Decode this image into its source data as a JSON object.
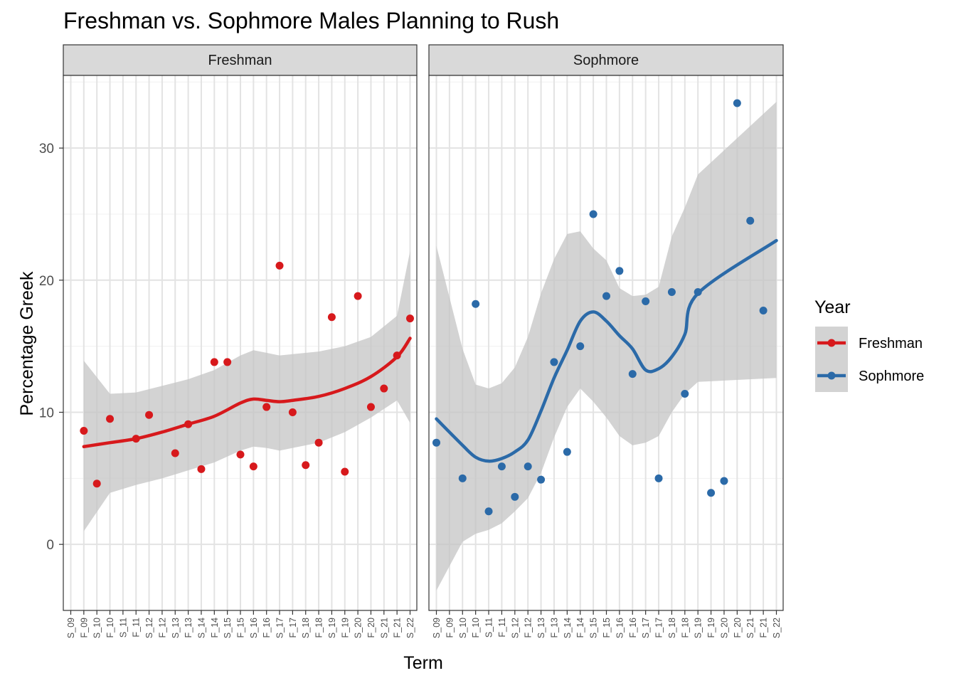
{
  "chart_data": {
    "type": "scatter",
    "title": "Freshman vs. Sophmore Males Planning to Rush",
    "xlabel": "Term",
    "ylabel": "Percentage Greek",
    "ylim": [
      -5,
      35.5
    ],
    "yticks": [
      0,
      10,
      20,
      30
    ],
    "grid": true,
    "legend": {
      "title": "Year",
      "position": "right"
    },
    "colors": {
      "Freshman": "#d7191c",
      "Sophmore": "#2b6aa8",
      "ribbon": "#c4c4c4"
    },
    "panels": [
      {
        "strip": "Freshman",
        "x_categories": [
          "S_09",
          "F_09",
          "S_10",
          "F_10",
          "S_11",
          "F_11",
          "S_12",
          "F_12",
          "S_13",
          "F_13",
          "S_14",
          "F_14",
          "S_15",
          "F_15",
          "S_16",
          "F_16",
          "S_17",
          "F_17",
          "S_18",
          "F_18",
          "S_19",
          "F_19",
          "S_20",
          "F_20",
          "S_21",
          "F_21",
          "S_22"
        ],
        "series": [
          {
            "name": "Freshman",
            "points": [
              [
                "F_09",
                8.6
              ],
              [
                "S_10",
                4.6
              ],
              [
                "F_10",
                9.5
              ],
              [
                "F_11",
                8.0
              ],
              [
                "S_12",
                9.8
              ],
              [
                "S_13",
                6.9
              ],
              [
                "F_13",
                9.1
              ],
              [
                "S_14",
                5.7
              ],
              [
                "F_14",
                13.8
              ],
              [
                "S_15",
                13.8
              ],
              [
                "F_15",
                6.8
              ],
              [
                "S_16",
                5.9
              ],
              [
                "F_16",
                10.4
              ],
              [
                "S_17",
                21.1
              ],
              [
                "F_17",
                10.0
              ],
              [
                "S_18",
                6.0
              ],
              [
                "F_18",
                7.7
              ],
              [
                "S_19",
                17.2
              ],
              [
                "F_19",
                5.5
              ],
              [
                "S_20",
                18.8
              ],
              [
                "F_20",
                10.4
              ],
              [
                "S_21",
                11.8
              ],
              [
                "F_21",
                14.3
              ],
              [
                "S_22",
                17.1
              ]
            ],
            "smooth": [
              [
                "F_09",
                7.4
              ],
              [
                "F_10",
                7.7
              ],
              [
                "F_11",
                8.0
              ],
              [
                "F_12",
                8.5
              ],
              [
                "F_13",
                9.1
              ],
              [
                "F_14",
                9.7
              ],
              [
                "F_15",
                10.7
              ],
              [
                "S_16",
                11.0
              ],
              [
                "F_16",
                10.9
              ],
              [
                "S_17",
                10.8
              ],
              [
                "F_17",
                10.9
              ],
              [
                "F_18",
                11.2
              ],
              [
                "F_19",
                11.8
              ],
              [
                "F_20",
                12.7
              ],
              [
                "F_21",
                14.2
              ],
              [
                "S_22",
                15.6
              ]
            ],
            "ribbon_upper": [
              [
                "F_09",
                13.9
              ],
              [
                "F_10",
                11.4
              ],
              [
                "F_11",
                11.5
              ],
              [
                "F_12",
                12.0
              ],
              [
                "F_13",
                12.5
              ],
              [
                "F_14",
                13.2
              ],
              [
                "F_15",
                14.3
              ],
              [
                "S_16",
                14.7
              ],
              [
                "F_16",
                14.5
              ],
              [
                "S_17",
                14.3
              ],
              [
                "F_17",
                14.4
              ],
              [
                "F_18",
                14.6
              ],
              [
                "F_19",
                15.0
              ],
              [
                "F_20",
                15.7
              ],
              [
                "F_21",
                17.3
              ],
              [
                "S_22",
                22.2
              ]
            ],
            "ribbon_lower": [
              [
                "F_09",
                1.0
              ],
              [
                "F_10",
                3.9
              ],
              [
                "F_11",
                4.5
              ],
              [
                "F_12",
                5.0
              ],
              [
                "F_13",
                5.6
              ],
              [
                "F_14",
                6.2
              ],
              [
                "F_15",
                7.1
              ],
              [
                "S_16",
                7.4
              ],
              [
                "F_16",
                7.3
              ],
              [
                "S_17",
                7.1
              ],
              [
                "F_17",
                7.3
              ],
              [
                "F_18",
                7.7
              ],
              [
                "F_19",
                8.5
              ],
              [
                "F_20",
                9.6
              ],
              [
                "F_21",
                10.9
              ],
              [
                "S_22",
                9.2
              ]
            ]
          }
        ]
      },
      {
        "strip": "Sophmore",
        "x_categories": [
          "S_09",
          "F_09",
          "S_10",
          "F_10",
          "S_11",
          "F_11",
          "S_12",
          "F_12",
          "S_13",
          "F_13",
          "S_14",
          "F_14",
          "S_15",
          "F_15",
          "S_16",
          "F_16",
          "S_17",
          "F_17",
          "S_18",
          "F_18",
          "S_19",
          "F_19",
          "S_20",
          "F_20",
          "S_21",
          "F_21",
          "S_22"
        ],
        "series": [
          {
            "name": "Sophmore",
            "points": [
              [
                "S_09",
                7.7
              ],
              [
                "S_10",
                5.0
              ],
              [
                "F_10",
                18.2
              ],
              [
                "S_11",
                2.5
              ],
              [
                "F_11",
                5.9
              ],
              [
                "S_12",
                3.6
              ],
              [
                "F_12",
                5.9
              ],
              [
                "S_13",
                4.9
              ],
              [
                "F_13",
                13.8
              ],
              [
                "S_14",
                7.0
              ],
              [
                "F_14",
                15.0
              ],
              [
                "S_15",
                25.0
              ],
              [
                "F_15",
                18.8
              ],
              [
                "S_16",
                20.7
              ],
              [
                "F_16",
                12.9
              ],
              [
                "S_17",
                18.4
              ],
              [
                "F_17",
                5.0
              ],
              [
                "S_18",
                19.1
              ],
              [
                "F_18",
                11.4
              ],
              [
                "S_19",
                19.1
              ],
              [
                "F_19",
                3.9
              ],
              [
                "S_20",
                4.8
              ],
              [
                "F_20",
                33.4
              ],
              [
                "S_21",
                24.5
              ],
              [
                "F_21",
                17.7
              ]
            ],
            "smooth": [
              [
                "S_09",
                9.5
              ],
              [
                "S_10",
                7.5
              ],
              [
                "F_10",
                6.6
              ],
              [
                "S_11",
                6.3
              ],
              [
                "F_11",
                6.5
              ],
              [
                "S_12",
                7.0
              ],
              [
                "F_12",
                7.9
              ],
              [
                "S_13",
                10.1
              ],
              [
                "F_13",
                12.6
              ],
              [
                "S_14",
                14.7
              ],
              [
                "F_14",
                16.9
              ],
              [
                "S_15",
                17.6
              ],
              [
                "F_15",
                16.9
              ],
              [
                "S_16",
                15.8
              ],
              [
                "F_16",
                14.8
              ],
              [
                "S_17",
                13.2
              ],
              [
                "F_17",
                13.3
              ],
              [
                "S_18",
                14.2
              ],
              [
                "F_18",
                15.9
              ],
              [
                "S_19",
                19.0
              ],
              [
                "S_22",
                23.0
              ]
            ],
            "ribbon_upper": [
              [
                "S_09",
                22.6
              ],
              [
                "S_10",
                14.8
              ],
              [
                "F_10",
                12.1
              ],
              [
                "S_11",
                11.8
              ],
              [
                "F_11",
                12.2
              ],
              [
                "S_12",
                13.4
              ],
              [
                "F_12",
                15.7
              ],
              [
                "S_13",
                19.0
              ],
              [
                "F_13",
                21.6
              ],
              [
                "S_14",
                23.5
              ],
              [
                "F_14",
                23.7
              ],
              [
                "S_15",
                22.4
              ],
              [
                "F_15",
                21.5
              ],
              [
                "S_16",
                19.4
              ],
              [
                "F_16",
                18.8
              ],
              [
                "S_17",
                18.9
              ],
              [
                "F_17",
                19.5
              ],
              [
                "S_18",
                23.3
              ],
              [
                "F_18",
                25.5
              ],
              [
                "S_19",
                28.0
              ],
              [
                "S_22",
                33.5
              ]
            ],
            "ribbon_lower": [
              [
                "S_09",
                -3.5
              ],
              [
                "S_10",
                0.2
              ],
              [
                "F_10",
                0.8
              ],
              [
                "S_11",
                1.1
              ],
              [
                "F_11",
                1.6
              ],
              [
                "S_12",
                2.5
              ],
              [
                "F_12",
                3.5
              ],
              [
                "S_13",
                5.4
              ],
              [
                "F_13",
                8.1
              ],
              [
                "S_14",
                10.4
              ],
              [
                "F_14",
                11.8
              ],
              [
                "S_15",
                10.8
              ],
              [
                "F_15",
                9.6
              ],
              [
                "S_16",
                8.2
              ],
              [
                "F_16",
                7.5
              ],
              [
                "S_17",
                7.7
              ],
              [
                "F_17",
                8.2
              ],
              [
                "S_18",
                10.0
              ],
              [
                "F_18",
                11.4
              ],
              [
                "S_19",
                12.3
              ],
              [
                "S_22",
                12.6
              ]
            ]
          }
        ]
      }
    ]
  }
}
